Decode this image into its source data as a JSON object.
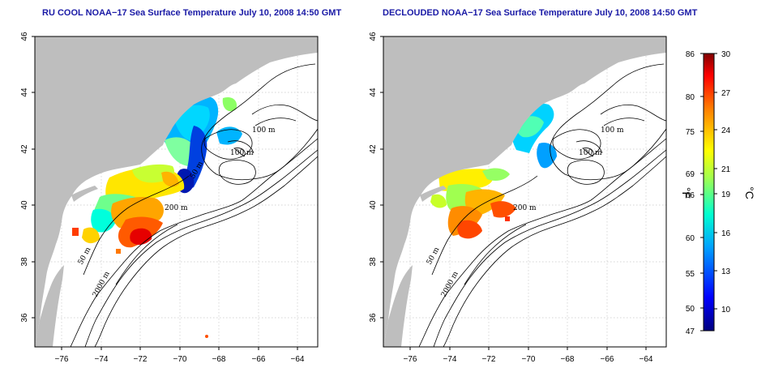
{
  "titles": {
    "left": "RU COOL NOAA−17 Sea Surface Temperature July 10, 2008 14:50 GMT",
    "right": "DECLOUDED NOAA−17 Sea Surface Temperature July 10, 2008 14:50 GMT"
  },
  "axes": {
    "x_ticks": [
      "−76",
      "−74",
      "−72",
      "−70",
      "−68",
      "−66",
      "−64"
    ],
    "y_ticks": [
      "46",
      "44",
      "42",
      "40",
      "38",
      "36"
    ]
  },
  "contour_labels": {
    "m100a": "100 m",
    "m100b": "100 m",
    "m50a": "50 m",
    "m50b": "50 m",
    "m200": "200 m",
    "m2000": "2000 m"
  },
  "colorbar": {
    "celsius_unit": "°C",
    "fahrenheit_unit": "°F",
    "celsius_ticks": [
      "30",
      "27",
      "24",
      "21",
      "19",
      "16",
      "13",
      "10"
    ],
    "fahrenheit_ticks": [
      "86",
      "80",
      "75",
      "69",
      "66",
      "60",
      "55",
      "50",
      "47"
    ],
    "colors": [
      "#00007f",
      "#0000ff",
      "#007fff",
      "#00ffff",
      "#7fff7f",
      "#ffff00",
      "#ff7f00",
      "#ff0000",
      "#7f0000"
    ]
  }
}
